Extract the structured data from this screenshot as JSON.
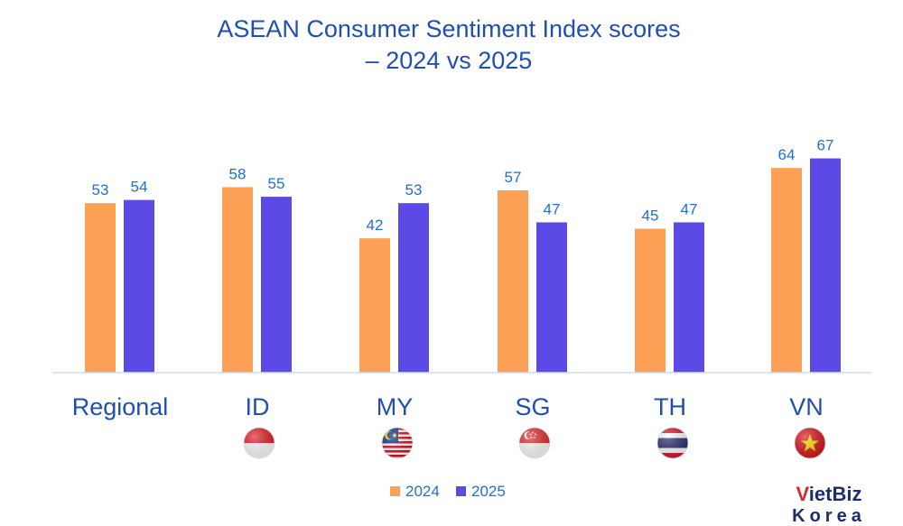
{
  "chart_data": {
    "type": "bar",
    "title_line1": "ASEAN Consumer Sentiment Index scores",
    "title_line2": "– 2024 vs 2025",
    "categories": [
      "Regional",
      "ID",
      "MY",
      "SG",
      "TH",
      "VN"
    ],
    "series": [
      {
        "name": "2024",
        "color": "#fba054",
        "values": [
          53,
          58,
          42,
          57,
          45,
          64
        ]
      },
      {
        "name": "2025",
        "color": "#5b4ae6",
        "values": [
          54,
          55,
          53,
          47,
          47,
          67
        ]
      }
    ],
    "flags": [
      "",
      "indonesia-flag-icon",
      "malaysia-flag-icon",
      "singapore-flag-icon",
      "thailand-flag-icon",
      "vietnam-flag-icon"
    ],
    "ylim": [
      0,
      67
    ],
    "grid": false,
    "legend_position": "bottom-center"
  },
  "watermark": {
    "line1": "VietBiz",
    "line2": "Korea"
  }
}
